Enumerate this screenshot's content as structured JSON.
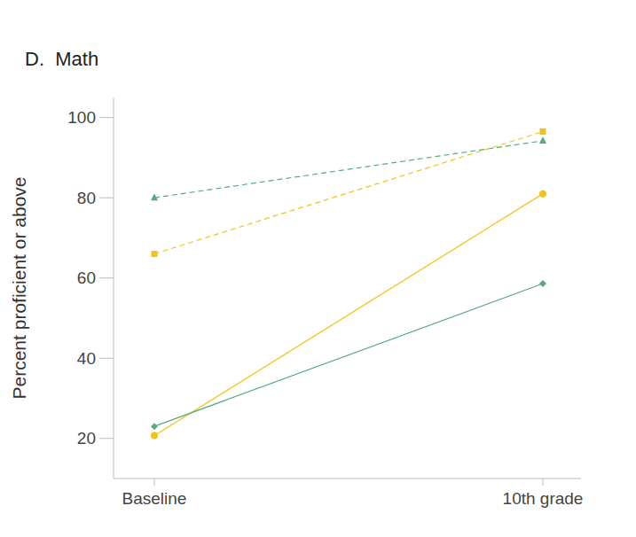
{
  "chart_data": {
    "type": "line",
    "title": "D.  Math",
    "y_label": "Percent proficient or above",
    "categories": [
      "Baseline",
      "10th grade"
    ],
    "ylim": [
      10,
      105
    ],
    "yticks": [
      20,
      40,
      60,
      80,
      100
    ],
    "grid": false,
    "series": [
      {
        "color": "#5aaa7a",
        "values": [
          80,
          94.2
        ],
        "marker": "triangle",
        "line_style": "dashed"
      },
      {
        "color": "#f2c21b",
        "values": [
          66,
          96.5
        ],
        "marker": "square",
        "line_style": "dashed"
      },
      {
        "color": "#f2c21b",
        "values": [
          20.7,
          81
        ],
        "marker": "circle",
        "line_style": "solid"
      },
      {
        "color": "#5aaa7a",
        "values": [
          23,
          58.6
        ],
        "marker": "diamond",
        "line_style": "solid"
      }
    ]
  }
}
